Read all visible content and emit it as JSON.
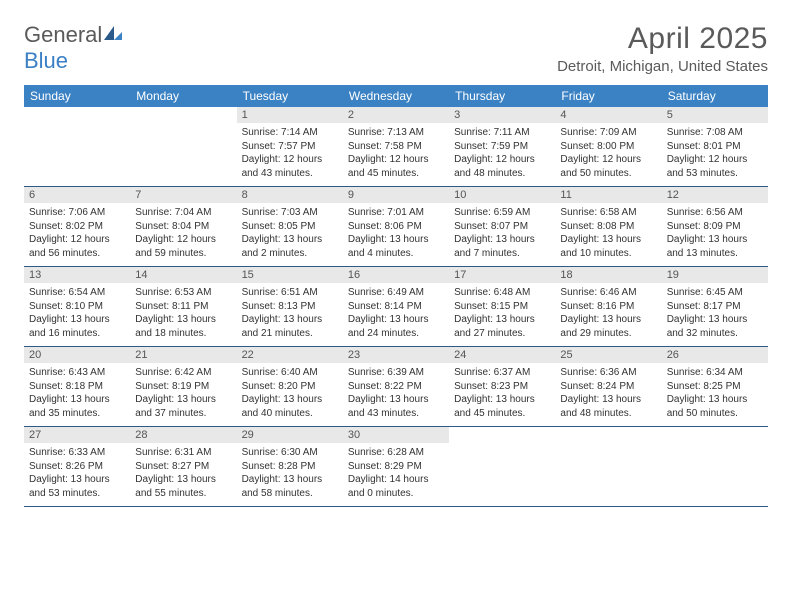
{
  "brand": {
    "name_part1": "General",
    "name_part2": "Blue"
  },
  "title": "April 2025",
  "location": "Detroit, Michigan, United States",
  "colors": {
    "header_bg": "#3b82c4",
    "header_text": "#ffffff",
    "daynum_bg": "#e8e8e8",
    "cell_border": "#2b5a8a",
    "text": "#333333",
    "subtext": "#5a5a5a"
  },
  "typography": {
    "title_fontsize": 30,
    "location_fontsize": 15,
    "header_fontsize": 12,
    "daynum_fontsize": 11,
    "body_fontsize": 10
  },
  "day_headers": [
    "Sunday",
    "Monday",
    "Tuesday",
    "Wednesday",
    "Thursday",
    "Friday",
    "Saturday"
  ],
  "labels": {
    "sunrise": "Sunrise:",
    "sunset": "Sunset:",
    "daylight": "Daylight:"
  },
  "weeks": [
    [
      null,
      null,
      {
        "n": "1",
        "sunrise": "7:14 AM",
        "sunset": "7:57 PM",
        "daylight": "12 hours and 43 minutes."
      },
      {
        "n": "2",
        "sunrise": "7:13 AM",
        "sunset": "7:58 PM",
        "daylight": "12 hours and 45 minutes."
      },
      {
        "n": "3",
        "sunrise": "7:11 AM",
        "sunset": "7:59 PM",
        "daylight": "12 hours and 48 minutes."
      },
      {
        "n": "4",
        "sunrise": "7:09 AM",
        "sunset": "8:00 PM",
        "daylight": "12 hours and 50 minutes."
      },
      {
        "n": "5",
        "sunrise": "7:08 AM",
        "sunset": "8:01 PM",
        "daylight": "12 hours and 53 minutes."
      }
    ],
    [
      {
        "n": "6",
        "sunrise": "7:06 AM",
        "sunset": "8:02 PM",
        "daylight": "12 hours and 56 minutes."
      },
      {
        "n": "7",
        "sunrise": "7:04 AM",
        "sunset": "8:04 PM",
        "daylight": "12 hours and 59 minutes."
      },
      {
        "n": "8",
        "sunrise": "7:03 AM",
        "sunset": "8:05 PM",
        "daylight": "13 hours and 2 minutes."
      },
      {
        "n": "9",
        "sunrise": "7:01 AM",
        "sunset": "8:06 PM",
        "daylight": "13 hours and 4 minutes."
      },
      {
        "n": "10",
        "sunrise": "6:59 AM",
        "sunset": "8:07 PM",
        "daylight": "13 hours and 7 minutes."
      },
      {
        "n": "11",
        "sunrise": "6:58 AM",
        "sunset": "8:08 PM",
        "daylight": "13 hours and 10 minutes."
      },
      {
        "n": "12",
        "sunrise": "6:56 AM",
        "sunset": "8:09 PM",
        "daylight": "13 hours and 13 minutes."
      }
    ],
    [
      {
        "n": "13",
        "sunrise": "6:54 AM",
        "sunset": "8:10 PM",
        "daylight": "13 hours and 16 minutes."
      },
      {
        "n": "14",
        "sunrise": "6:53 AM",
        "sunset": "8:11 PM",
        "daylight": "13 hours and 18 minutes."
      },
      {
        "n": "15",
        "sunrise": "6:51 AM",
        "sunset": "8:13 PM",
        "daylight": "13 hours and 21 minutes."
      },
      {
        "n": "16",
        "sunrise": "6:49 AM",
        "sunset": "8:14 PM",
        "daylight": "13 hours and 24 minutes."
      },
      {
        "n": "17",
        "sunrise": "6:48 AM",
        "sunset": "8:15 PM",
        "daylight": "13 hours and 27 minutes."
      },
      {
        "n": "18",
        "sunrise": "6:46 AM",
        "sunset": "8:16 PM",
        "daylight": "13 hours and 29 minutes."
      },
      {
        "n": "19",
        "sunrise": "6:45 AM",
        "sunset": "8:17 PM",
        "daylight": "13 hours and 32 minutes."
      }
    ],
    [
      {
        "n": "20",
        "sunrise": "6:43 AM",
        "sunset": "8:18 PM",
        "daylight": "13 hours and 35 minutes."
      },
      {
        "n": "21",
        "sunrise": "6:42 AM",
        "sunset": "8:19 PM",
        "daylight": "13 hours and 37 minutes."
      },
      {
        "n": "22",
        "sunrise": "6:40 AM",
        "sunset": "8:20 PM",
        "daylight": "13 hours and 40 minutes."
      },
      {
        "n": "23",
        "sunrise": "6:39 AM",
        "sunset": "8:22 PM",
        "daylight": "13 hours and 43 minutes."
      },
      {
        "n": "24",
        "sunrise": "6:37 AM",
        "sunset": "8:23 PM",
        "daylight": "13 hours and 45 minutes."
      },
      {
        "n": "25",
        "sunrise": "6:36 AM",
        "sunset": "8:24 PM",
        "daylight": "13 hours and 48 minutes."
      },
      {
        "n": "26",
        "sunrise": "6:34 AM",
        "sunset": "8:25 PM",
        "daylight": "13 hours and 50 minutes."
      }
    ],
    [
      {
        "n": "27",
        "sunrise": "6:33 AM",
        "sunset": "8:26 PM",
        "daylight": "13 hours and 53 minutes."
      },
      {
        "n": "28",
        "sunrise": "6:31 AM",
        "sunset": "8:27 PM",
        "daylight": "13 hours and 55 minutes."
      },
      {
        "n": "29",
        "sunrise": "6:30 AM",
        "sunset": "8:28 PM",
        "daylight": "13 hours and 58 minutes."
      },
      {
        "n": "30",
        "sunrise": "6:28 AM",
        "sunset": "8:29 PM",
        "daylight": "14 hours and 0 minutes."
      },
      null,
      null,
      null
    ]
  ]
}
